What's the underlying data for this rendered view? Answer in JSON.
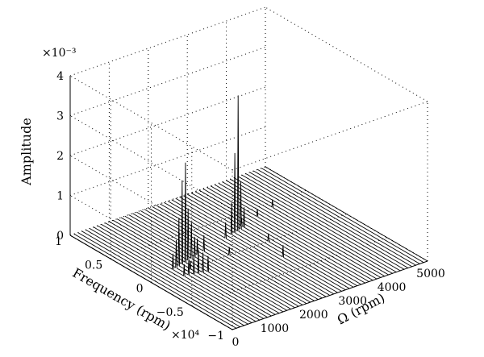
{
  "chart_data": {
    "type": "waterfall-3d",
    "title": "",
    "xlabel": "Ω (rpm)",
    "ylabel": "Frequency (rpm)",
    "zlabel": "Amplitude",
    "x_ticks": [
      "0",
      "1000",
      "2000",
      "3000",
      "4000",
      "5000"
    ],
    "y_ticks": [
      "1",
      "0.5",
      "0",
      "−0.5",
      "−1"
    ],
    "y_multiplier": "×10⁴",
    "z_ticks": [
      "0",
      "1",
      "2",
      "3",
      "4"
    ],
    "z_multiplier": "×10⁻³",
    "xlim": [
      0,
      5000
    ],
    "ylim": [
      -10000,
      10000
    ],
    "zlim": [
      0,
      0.004
    ],
    "grid": true,
    "omega_start": 0,
    "omega_step": 100,
    "omega_count": 51,
    "peaks": [
      {
        "omega": 700,
        "frequency": 700,
        "amplitude": 0.0004
      },
      {
        "omega": 800,
        "frequency": 800,
        "amplitude": 0.0007
      },
      {
        "omega": 900,
        "frequency": 900,
        "amplitude": 0.0012
      },
      {
        "omega": 1000,
        "frequency": 1000,
        "amplitude": 0.0021
      },
      {
        "omega": 1100,
        "frequency": 1100,
        "amplitude": 0.0025
      },
      {
        "omega": 1200,
        "frequency": 1200,
        "amplitude": 0.0013
      },
      {
        "omega": 1300,
        "frequency": 1300,
        "amplitude": 0.0009
      },
      {
        "omega": 1400,
        "frequency": 1400,
        "amplitude": 0.0005
      },
      {
        "omega": 1500,
        "frequency": 1500,
        "amplitude": 0.0004
      },
      {
        "omega": 1700,
        "frequency": 1700,
        "amplitude": 0.0004
      },
      {
        "omega": 700,
        "frequency": -700,
        "amplitude": 0.0003
      },
      {
        "omega": 800,
        "frequency": -800,
        "amplitude": 0.0004
      },
      {
        "omega": 900,
        "frequency": -900,
        "amplitude": 0.0005
      },
      {
        "omega": 1000,
        "frequency": -1000,
        "amplitude": 0.0006
      },
      {
        "omega": 1100,
        "frequency": -1100,
        "amplitude": 0.0005
      },
      {
        "omega": 1200,
        "frequency": -1200,
        "amplitude": 0.0004
      },
      {
        "omega": 2400,
        "frequency": 2400,
        "amplitude": 0.0004
      },
      {
        "omega": 2600,
        "frequency": 2600,
        "amplitude": 0.0008
      },
      {
        "omega": 2700,
        "frequency": 2700,
        "amplitude": 0.002
      },
      {
        "omega": 2800,
        "frequency": 2800,
        "amplitude": 0.0034
      },
      {
        "omega": 2900,
        "frequency": 2900,
        "amplitude": 0.0012
      },
      {
        "omega": 3000,
        "frequency": 3000,
        "amplitude": 0.0005
      },
      {
        "omega": 2800,
        "frequency": -2800,
        "amplitude": 0.0003
      },
      {
        "omega": 1000,
        "frequency": 0,
        "amplitude": 0.0002
      },
      {
        "omega": 2000,
        "frequency": 0,
        "amplitude": 0.0002
      },
      {
        "omega": 3000,
        "frequency": 0,
        "amplitude": 0.0002
      },
      {
        "omega": 3000,
        "frequency": 3300,
        "amplitude": 0.0002
      },
      {
        "omega": 3500,
        "frequency": 3800,
        "amplitude": 0.0002
      },
      {
        "omega": 4000,
        "frequency": 4300,
        "amplitude": 0.0002
      }
    ]
  }
}
